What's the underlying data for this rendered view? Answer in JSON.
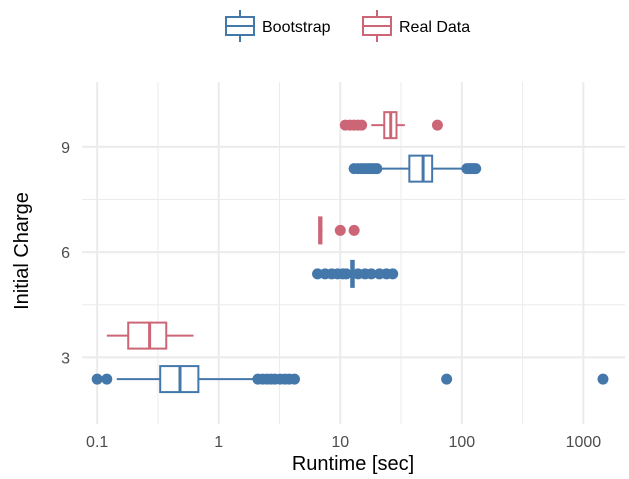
{
  "chart_data": {
    "type": "boxplot",
    "orientation": "horizontal",
    "xlabel": "Runtime [sec]",
    "ylabel": "Initial Charge",
    "x_scale": "log10",
    "xlim": [
      0.075,
      2200
    ],
    "ylim": [
      1.1,
      10.85
    ],
    "x_ticks": [
      0.1,
      1,
      10,
      100,
      1000
    ],
    "x_tick_labels": [
      "0.1",
      "1",
      "10",
      "100",
      "1000"
    ],
    "y_ticks": [
      3,
      6,
      9
    ],
    "y_tick_labels": [
      "3",
      "6",
      "9"
    ],
    "grid": true,
    "legend_position": "top",
    "series": [
      {
        "name": "Bootstrap",
        "color": "#4477aa",
        "boxes": [
          {
            "group": 3,
            "whisker_low": 0.145,
            "q1": 0.33,
            "median": 0.48,
            "q3": 0.68,
            "whisker_high": 2.0,
            "outliers": [
              0.1,
              0.12,
              2.1,
              2.3,
              2.5,
              2.7,
              2.9,
              3.2,
              3.5,
              3.8,
              4.2,
              75,
              1450
            ]
          },
          {
            "group": 6,
            "whisker_low": 12.2,
            "q1": 12.3,
            "median": 12.6,
            "q3": 12.9,
            "whisker_high": 13.2,
            "outliers": [
              6.5,
              7.5,
              8.5,
              9.5,
              10.5,
              11.2,
              14,
              16,
              18,
              21,
              24,
              27
            ]
          },
          {
            "group": 9,
            "whisker_low": 21,
            "q1": 37,
            "median": 48,
            "q3": 57,
            "whisker_high": 105,
            "outliers": [
              13,
              14,
              15,
              16,
              17,
              18,
              19,
              20,
              110,
              115,
              120,
              125,
              130
            ]
          }
        ]
      },
      {
        "name": "Real Data",
        "color": "#cc6677",
        "boxes": [
          {
            "group": 3,
            "whisker_low": 0.12,
            "q1": 0.18,
            "median": 0.27,
            "q3": 0.37,
            "whisker_high": 0.62,
            "outliers": []
          },
          {
            "group": 6,
            "whisker_low": 6.6,
            "q1": 6.7,
            "median": 6.85,
            "q3": 7.0,
            "whisker_high": 7.15,
            "outliers": [
              10,
              13
            ]
          },
          {
            "group": 9,
            "whisker_low": 18,
            "q1": 23,
            "median": 26,
            "q3": 29,
            "whisker_high": 34,
            "outliers": [
              11,
              12,
              13,
              14,
              15,
              63
            ]
          }
        ]
      }
    ]
  }
}
